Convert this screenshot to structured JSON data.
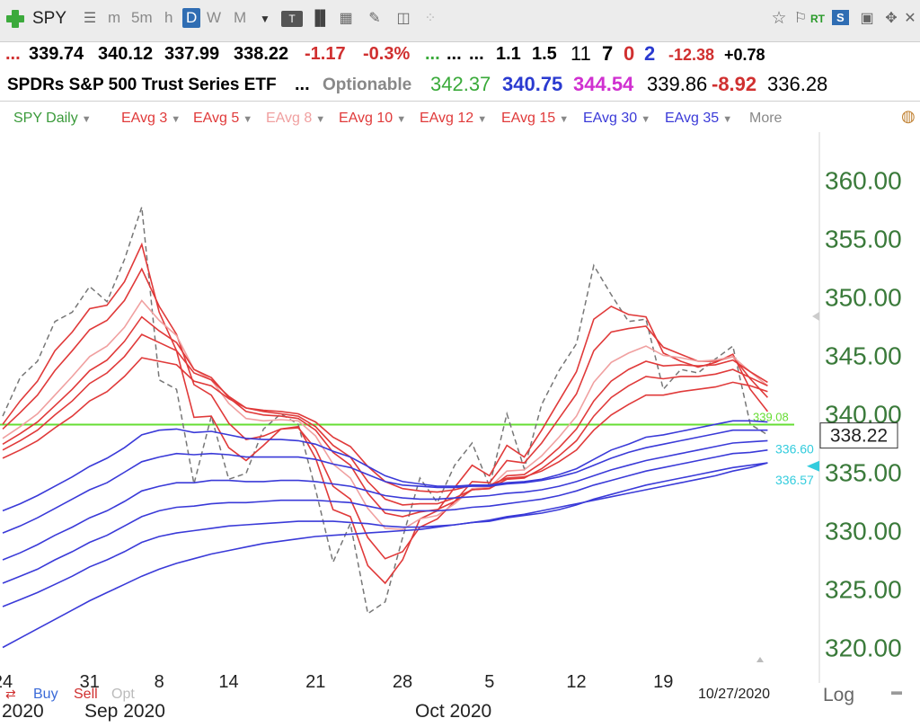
{
  "toolbar": {
    "add_icon": "plus-icon",
    "symbol": "SPY",
    "list_icon": "list-icon",
    "intervals": [
      "m",
      "5m",
      "h",
      "D",
      "W",
      "M"
    ],
    "active_interval": "D",
    "tools_right": [
      "star-icon",
      "flag-icon",
      "rt-icon",
      "sync-icon",
      "save-icon",
      "move-icon",
      "close-icon"
    ],
    "rt_label": "RT",
    "sync_label": "S"
  },
  "quote": {
    "line1": {
      "dots1": "...",
      "open": "339.74",
      "high": "340.12",
      "low": "337.99",
      "last": "338.22",
      "change": "-1.17",
      "change_pct": "-0.3%",
      "dots2": "...",
      "dots3": "...",
      "dots4": "...",
      "v1": "1.1",
      "v2": "1.5",
      "v3": "11",
      "v4": "7",
      "v5": "0",
      "v6": "2",
      "v7": "-12.38",
      "v8": "+0.78"
    },
    "line2": {
      "name": "SPDRs S&P 500 Trust Series ETF",
      "dots": "...",
      "optionable": "Optionable",
      "p1": "342.37",
      "p2": "340.75",
      "p3": "344.54",
      "p4": "339.86",
      "p5": "-8.92",
      "p6": "336.28"
    }
  },
  "studies": [
    {
      "label": "SPY Daily",
      "color": "#3a9a3a"
    },
    {
      "label": "EAvg 3",
      "color": "#e03a3a"
    },
    {
      "label": "EAvg 5",
      "color": "#e03a3a"
    },
    {
      "label": "EAvg 8",
      "color": "#f0a0a0"
    },
    {
      "label": "EAvg 10",
      "color": "#e03a3a"
    },
    {
      "label": "EAvg 12",
      "color": "#e03a3a"
    },
    {
      "label": "EAvg 15",
      "color": "#e03a3a"
    },
    {
      "label": "EAvg 30",
      "color": "#3a3ad8"
    },
    {
      "label": "EAvg 35",
      "color": "#3a3ad8"
    },
    {
      "label": "More",
      "color": "#888888"
    }
  ],
  "bottom": {
    "buy": "Buy",
    "sell": "Sell",
    "opt": "Opt",
    "date": "10/27/2020",
    "log": "Log",
    "x_month_labels": [
      "2020",
      "Sep 2020",
      "Oct 2020"
    ],
    "colors": {
      "buy": "#3a6ad8",
      "sell": "#d03030",
      "opt": "#bbbbbb"
    }
  },
  "chart_data": {
    "type": "line",
    "y_range": [
      318.5,
      362.5
    ],
    "y_ticks": [
      "360.00",
      "355.00",
      "350.00",
      "345.00",
      "340.00",
      "335.00",
      "330.00",
      "325.00",
      "320.00"
    ],
    "y_tick_values": [
      360,
      355,
      350,
      345,
      340,
      335,
      330,
      325,
      320
    ],
    "x_tick_labels": [
      "24",
      "31",
      "8",
      "14",
      "21",
      "28",
      "5",
      "12",
      "19"
    ],
    "x_tick_index": [
      0,
      5,
      9,
      13,
      18,
      23,
      28,
      33,
      38
    ],
    "horizontal_line": {
      "value": 339.08,
      "label": "339.08",
      "color": "#66dd33"
    },
    "last_price": "338.22",
    "markers": [
      {
        "label": "336.60",
        "value": 336.6,
        "color": "#33ccdd"
      },
      {
        "label": "336.57",
        "value": 336.57,
        "color": "#33ccdd"
      }
    ],
    "series": [
      {
        "style": "dashed",
        "color": "#777777",
        "values": [
          339.8,
          343.1,
          344.5,
          347.9,
          348.7,
          350.9,
          349.6,
          353.2,
          357.7,
          342.9,
          342.1,
          334.0,
          339.8,
          334.4,
          334.9,
          338.7,
          340.0,
          339.1,
          333.5,
          327.3,
          330.6,
          322.9,
          323.9,
          329.4,
          334.5,
          332.4,
          335.6,
          337.5,
          333.8,
          340.0,
          335.3,
          340.8,
          343.7,
          346.0,
          352.7,
          350.2,
          347.9,
          348.1,
          342.1,
          343.8,
          343.5,
          344.7,
          345.8,
          339.1,
          338.2
        ]
      },
      {
        "color": "#e03a3a",
        "values": [
          339.1,
          341.1,
          342.8,
          345.4,
          347.0,
          349.0,
          349.3,
          351.3,
          354.5,
          348.7,
          345.4,
          339.7,
          339.8,
          337.1,
          336.0,
          337.3,
          338.7,
          338.9,
          336.2,
          331.8,
          331.2,
          327.0,
          325.5,
          327.5,
          331.0,
          331.7,
          333.7,
          335.6,
          334.7,
          337.3,
          336.3,
          338.6,
          341.1,
          343.6,
          348.1,
          349.2,
          348.5,
          348.3,
          345.2,
          344.5,
          344.0,
          344.4,
          345.1,
          342.1,
          340.2
        ]
      },
      {
        "color": "#e03a3a",
        "values": [
          338.7,
          340.1,
          341.6,
          343.7,
          345.4,
          347.2,
          348.0,
          349.7,
          352.4,
          349.2,
          346.8,
          342.5,
          341.6,
          339.2,
          337.8,
          338.1,
          338.7,
          338.8,
          337.0,
          333.8,
          332.7,
          329.4,
          327.6,
          328.2,
          330.3,
          331.0,
          332.5,
          334.2,
          334.1,
          336.0,
          335.8,
          337.5,
          339.6,
          341.7,
          345.4,
          347.0,
          347.3,
          347.5,
          345.7,
          345.1,
          344.5,
          344.5,
          344.9,
          343.0,
          341.4
        ]
      },
      {
        "color": "#f0a0a0",
        "values": [
          337.9,
          338.9,
          340.0,
          341.6,
          343.2,
          344.9,
          345.8,
          347.4,
          349.7,
          348.0,
          346.7,
          343.8,
          342.9,
          340.9,
          339.6,
          339.4,
          339.5,
          339.4,
          338.1,
          335.7,
          334.5,
          331.9,
          330.2,
          330.1,
          331.0,
          331.3,
          332.3,
          333.6,
          333.7,
          335.1,
          335.2,
          336.4,
          338.0,
          339.8,
          342.7,
          344.4,
          345.2,
          345.8,
          345.0,
          344.8,
          344.5,
          344.6,
          344.9,
          343.6,
          342.4
        ]
      },
      {
        "color": "#e03a3a",
        "values": [
          337.4,
          338.3,
          339.3,
          340.7,
          342.1,
          343.7,
          344.6,
          346.2,
          348.3,
          347.1,
          346.1,
          343.8,
          343.1,
          341.4,
          340.2,
          339.9,
          339.8,
          339.6,
          338.6,
          336.7,
          335.6,
          333.2,
          331.5,
          331.2,
          331.6,
          331.8,
          332.5,
          333.5,
          333.6,
          334.7,
          334.8,
          335.8,
          337.1,
          338.7,
          341.1,
          342.8,
          343.8,
          344.5,
          344.1,
          344.2,
          344.1,
          344.2,
          344.6,
          343.6,
          342.7
        ]
      },
      {
        "color": "#e03a3a",
        "values": [
          336.9,
          337.7,
          338.6,
          339.9,
          341.1,
          342.6,
          343.5,
          344.9,
          346.8,
          346.1,
          345.4,
          343.5,
          342.9,
          341.5,
          340.5,
          340.2,
          340.0,
          339.8,
          338.9,
          337.3,
          336.3,
          334.2,
          332.7,
          332.2,
          332.3,
          332.3,
          332.8,
          333.5,
          333.6,
          334.4,
          334.5,
          335.3,
          336.4,
          337.7,
          339.8,
          341.4,
          342.4,
          343.2,
          343.0,
          343.2,
          343.2,
          343.4,
          343.8,
          343.1,
          342.4
        ]
      },
      {
        "color": "#e03a3a",
        "values": [
          336.2,
          336.9,
          337.7,
          338.8,
          339.8,
          341.1,
          341.9,
          343.2,
          344.8,
          344.5,
          344.2,
          342.8,
          342.4,
          341.3,
          340.5,
          340.3,
          340.2,
          340.0,
          339.3,
          338.0,
          337.2,
          335.5,
          334.2,
          333.6,
          333.4,
          333.3,
          333.5,
          333.9,
          333.9,
          334.5,
          334.6,
          335.1,
          335.9,
          336.9,
          338.6,
          339.9,
          340.8,
          341.6,
          341.6,
          341.9,
          342.1,
          342.3,
          342.7,
          342.4,
          341.9
        ]
      },
      {
        "color": "#3a3ad8",
        "values": [
          331.7,
          332.3,
          333.0,
          333.8,
          334.6,
          335.5,
          336.2,
          337.1,
          338.2,
          338.6,
          338.7,
          338.4,
          338.5,
          338.2,
          337.9,
          337.8,
          337.8,
          337.7,
          337.4,
          336.8,
          336.3,
          335.5,
          334.7,
          334.2,
          334.0,
          333.8,
          333.8,
          333.9,
          333.9,
          334.1,
          334.2,
          334.4,
          334.8,
          335.3,
          336.1,
          336.9,
          337.4,
          338.0,
          338.2,
          338.5,
          338.8,
          339.1,
          339.4,
          339.4,
          339.3
        ]
      },
      {
        "color": "#3a3ad8",
        "values": [
          329.8,
          330.4,
          331.1,
          331.9,
          332.7,
          333.5,
          334.1,
          335.0,
          335.9,
          336.3,
          336.6,
          336.5,
          336.6,
          336.5,
          336.3,
          336.3,
          336.3,
          336.3,
          336.1,
          335.7,
          335.4,
          334.8,
          334.2,
          333.9,
          333.8,
          333.7,
          333.7,
          333.8,
          333.8,
          334.0,
          334.1,
          334.3,
          334.6,
          335.0,
          335.6,
          336.2,
          336.7,
          337.1,
          337.4,
          337.7,
          338.0,
          338.3,
          338.6,
          338.6,
          338.6
        ]
      },
      {
        "color": "#3a3ad8",
        "values": [
          327.5,
          328.1,
          328.8,
          329.6,
          330.3,
          331.1,
          331.7,
          332.5,
          333.4,
          333.8,
          334.1,
          334.1,
          334.3,
          334.3,
          334.2,
          334.2,
          334.3,
          334.3,
          334.2,
          334.0,
          333.8,
          333.4,
          333.0,
          332.8,
          332.7,
          332.7,
          332.8,
          332.9,
          333.0,
          333.2,
          333.3,
          333.5,
          333.8,
          334.2,
          334.7,
          335.2,
          335.6,
          336.0,
          336.3,
          336.6,
          336.9,
          337.2,
          337.5,
          337.6,
          337.7
        ]
      },
      {
        "color": "#3a3ad8",
        "values": [
          325.5,
          326.1,
          326.7,
          327.5,
          328.2,
          329.0,
          329.6,
          330.4,
          331.2,
          331.7,
          332.0,
          332.1,
          332.3,
          332.4,
          332.4,
          332.5,
          332.6,
          332.6,
          332.6,
          332.5,
          332.4,
          332.1,
          331.8,
          331.7,
          331.7,
          331.7,
          331.8,
          332.0,
          332.1,
          332.3,
          332.5,
          332.7,
          333.0,
          333.4,
          333.9,
          334.3,
          334.7,
          335.1,
          335.4,
          335.7,
          336.0,
          336.3,
          336.6,
          336.7,
          336.9
        ]
      },
      {
        "color": "#3a3ad8",
        "values": [
          323.5,
          324.1,
          324.7,
          325.4,
          326.1,
          326.9,
          327.5,
          328.2,
          329.0,
          329.5,
          329.8,
          330.0,
          330.2,
          330.4,
          330.5,
          330.6,
          330.7,
          330.8,
          330.8,
          330.8,
          330.7,
          330.6,
          330.4,
          330.3,
          330.3,
          330.4,
          330.5,
          330.7,
          330.8,
          331.1,
          331.3,
          331.5,
          331.8,
          332.2,
          332.7,
          333.1,
          333.5,
          333.9,
          334.2,
          334.5,
          334.8,
          335.1,
          335.4,
          335.6,
          335.8
        ]
      },
      {
        "color": "#3a3ad8",
        "values": [
          320.0,
          320.8,
          321.6,
          322.4,
          323.2,
          324.0,
          324.7,
          325.4,
          326.1,
          326.7,
          327.2,
          327.6,
          328.0,
          328.3,
          328.6,
          328.9,
          329.1,
          329.3,
          329.5,
          329.6,
          329.7,
          329.8,
          329.9,
          330.0,
          330.1,
          330.3,
          330.5,
          330.7,
          330.9,
          331.2,
          331.4,
          331.7,
          332.0,
          332.3,
          332.6,
          332.9,
          333.2,
          333.5,
          333.8,
          334.1,
          334.4,
          334.7,
          335.1,
          335.4,
          335.8
        ]
      }
    ]
  }
}
